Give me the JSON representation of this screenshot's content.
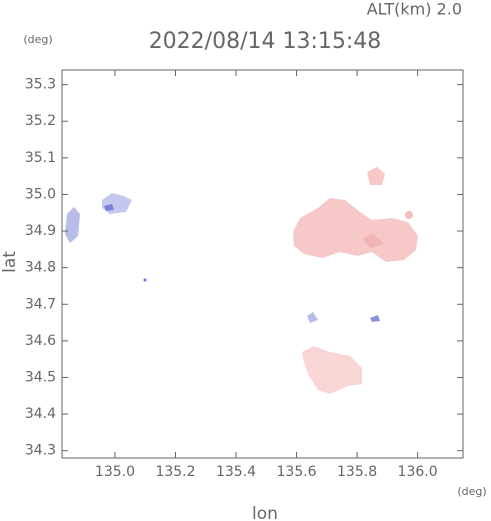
{
  "chart_data": {
    "type": "field",
    "title": "2022/08/14 13:15:48",
    "subtitle": "ALT(km) 2.0",
    "x_label": "lon",
    "y_label": "lat",
    "x_unit": "(deg)",
    "y_unit": "(deg)",
    "xlim": [
      134.825,
      136.15
    ],
    "ylim": [
      34.28,
      35.34
    ],
    "xticks": [
      {
        "value": 135.0,
        "label": "135.0"
      },
      135.2,
      135.4,
      135.6,
      135.8,
      {
        "value": 136.0,
        "label": "136.0"
      }
    ],
    "yticks": [
      34.3,
      34.4,
      34.5,
      34.6,
      34.7,
      34.8,
      34.9,
      {
        "value": 35.0,
        "label": "35.0"
      },
      35.1,
      35.2,
      35.3
    ]
  }
}
